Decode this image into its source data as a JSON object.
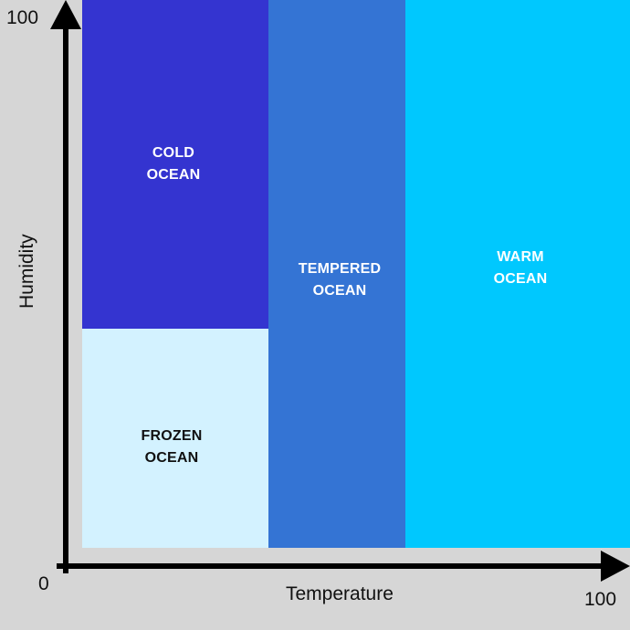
{
  "axes": {
    "x_title": "Temperature",
    "y_title": "Humidity",
    "origin_label": "0",
    "x_max_label": "100",
    "y_max_label": "100"
  },
  "regions": [
    {
      "name": "cold-ocean",
      "line1": "COLD",
      "line2": "OCEAN",
      "color": "#3434d0",
      "text_color": "#ffffff"
    },
    {
      "name": "frozen-ocean",
      "line1": "FROZEN",
      "line2": "OCEAN",
      "color": "#d3f2ff",
      "text_color": "#111111"
    },
    {
      "name": "tempered-ocean",
      "line1": "TEMPERED",
      "line2": "OCEAN",
      "color": "#3474d4",
      "text_color": "#ffffff"
    },
    {
      "name": "warm-ocean",
      "line1": "WARM",
      "line2": "OCEAN",
      "color": "#00c8fe",
      "text_color": "#ffffff"
    }
  ],
  "colors": {
    "background": "#d6d6d6",
    "axis": "#000000"
  }
}
